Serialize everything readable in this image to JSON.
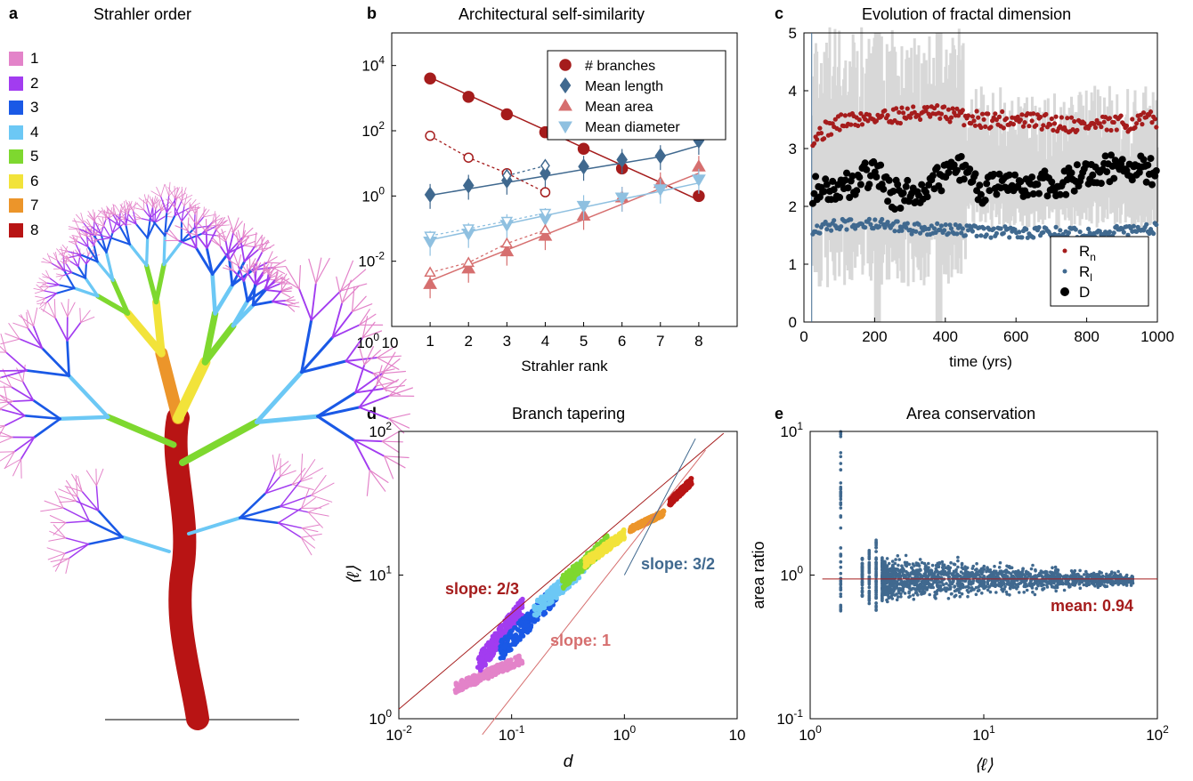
{
  "panels": {
    "a": {
      "label": "a",
      "title": "Strahler order"
    },
    "b": {
      "label": "b",
      "title": "Architectural self-similarity"
    },
    "c": {
      "label": "c",
      "title": "Evolution of fractal dimension"
    },
    "d": {
      "label": "d",
      "title": "Branch tapering"
    },
    "e": {
      "label": "e",
      "title": "Area conservation"
    }
  },
  "colors": {
    "order": [
      "#e383c9",
      "#a23cf0",
      "#1a59e6",
      "#6cc8f5",
      "#7ed82f",
      "#f2e33a",
      "#ec952a",
      "#b81414"
    ],
    "red": "#a51c1c",
    "steel": "#40698f",
    "salmon": "#d66f6f",
    "lightblue": "#8fc0e0",
    "grey": "#d8d8d8"
  },
  "chart_data": [
    {
      "panel": "a",
      "type": "other",
      "title": "Strahler order",
      "legend": [
        "1",
        "2",
        "3",
        "4",
        "5",
        "6",
        "7",
        "8"
      ]
    },
    {
      "panel": "b",
      "type": "scatter",
      "title": "Architectural self-similarity",
      "xlabel": "Strahler rank",
      "ylabel": "",
      "xlim": [
        0,
        9
      ],
      "ylim_log10": [
        -4,
        5
      ],
      "xticks": [
        "1",
        "2",
        "3",
        "4",
        "5",
        "6",
        "7",
        "8"
      ],
      "x_extra_tick": "10",
      "yticks": [
        "10",
        "10",
        "10"
      ],
      "ytick_exps": [
        "-2",
        "0",
        "2",
        "4"
      ],
      "y_origin_label": "10",
      "y_origin_exp": "0",
      "legend_position": "top-right",
      "categories": [
        1,
        2,
        3,
        4,
        5,
        6,
        7,
        8
      ],
      "series": [
        {
          "name": "# branches",
          "marker": "circle",
          "values": [
            4000,
            1100,
            320,
            90,
            28,
            7,
            null,
            1
          ],
          "fit": [
            4300,
            1250,
            360,
            105,
            30,
            8.8,
            2.6,
            0.75
          ]
        },
        {
          "name": "Mean length",
          "marker": "diamond",
          "values": [
            1.1,
            2.1,
            3.0,
            5.0,
            8.0,
            13,
            17,
            50
          ],
          "fit": [
            1.05,
            1.65,
            2.6,
            4.1,
            6.5,
            10.2,
            16,
            35
          ]
        },
        {
          "name": "Mean area",
          "marker": "triangle-up",
          "values": [
            0.002,
            0.006,
            0.02,
            0.06,
            0.25,
            0.9,
            2.5,
            8
          ],
          "fit": [
            0.0025,
            0.0075,
            0.022,
            0.065,
            0.19,
            0.56,
            1.7,
            5
          ]
        },
        {
          "name": "Mean diameter",
          "marker": "triangle-down",
          "values": [
            0.04,
            0.07,
            0.13,
            0.2,
            0.5,
            0.9,
            1.6,
            3.2
          ],
          "fit": [
            0.045,
            0.08,
            0.14,
            0.25,
            0.45,
            0.8,
            1.4,
            2.5
          ]
        }
      ],
      "open_series": [
        {
          "color": "red",
          "marker": "circle",
          "x": [
            1,
            2,
            3,
            4
          ],
          "values": [
            70,
            15,
            5,
            1.3
          ]
        },
        {
          "color": "steel",
          "marker": "diamond",
          "x": [
            3,
            4
          ],
          "values": [
            4.2,
            8.5
          ]
        },
        {
          "color": "salmon",
          "marker": "triangle-up",
          "x": [
            1,
            2,
            3,
            4
          ],
          "values": [
            0.0045,
            0.009,
            0.035,
            0.09
          ]
        },
        {
          "color": "lightblue",
          "marker": "triangle-down",
          "x": [
            1,
            2,
            3,
            4
          ],
          "values": [
            0.06,
            0.1,
            0.17,
            0.3
          ]
        }
      ]
    },
    {
      "panel": "c",
      "type": "scatter",
      "title": "Evolution of fractal dimension",
      "xlabel": "time (yrs)",
      "ylabel": "",
      "xlim": [
        0,
        1000
      ],
      "ylim": [
        0,
        5
      ],
      "xticks": [
        "0",
        "200",
        "400",
        "600",
        "800",
        "1000"
      ],
      "yticks": [
        "0",
        "1",
        "2",
        "3",
        "4",
        "5"
      ],
      "legend_position": "bottom-right",
      "series": [
        {
          "name": "R",
          "subscript": "n",
          "color": "red",
          "trend": [
            [
              25,
              3.2
            ],
            [
              100,
              3.45
            ],
            [
              200,
              3.55
            ],
            [
              300,
              3.6
            ],
            [
              400,
              3.6
            ],
            [
              500,
              3.5
            ],
            [
              600,
              3.5
            ],
            [
              700,
              3.45
            ],
            [
              800,
              3.4
            ],
            [
              900,
              3.42
            ],
            [
              1000,
              3.52
            ]
          ]
        },
        {
          "name": "R",
          "subscript": "l",
          "color": "steel",
          "trend": [
            [
              25,
              1.62
            ],
            [
              100,
              1.68
            ],
            [
              200,
              1.7
            ],
            [
              300,
              1.62
            ],
            [
              400,
              1.6
            ],
            [
              500,
              1.56
            ],
            [
              600,
              1.55
            ],
            [
              700,
              1.55
            ],
            [
              800,
              1.55
            ],
            [
              900,
              1.58
            ],
            [
              1000,
              1.62
            ]
          ]
        },
        {
          "name": "D",
          "color": "black",
          "trend": [
            [
              25,
              2.3
            ],
            [
              100,
              2.3
            ],
            [
              200,
              2.6
            ],
            [
              250,
              2.2
            ],
            [
              300,
              2.2
            ],
            [
              400,
              2.5
            ],
            [
              450,
              2.7
            ],
            [
              500,
              2.3
            ],
            [
              600,
              2.35
            ],
            [
              700,
              2.4
            ],
            [
              800,
              2.5
            ],
            [
              900,
              2.75
            ],
            [
              1000,
              2.55
            ]
          ]
        }
      ]
    },
    {
      "panel": "d",
      "type": "scatter",
      "title": "Branch tapering",
      "xlabel": "d",
      "ylabel": "⟨ℓ⟩",
      "xlim_log10": [
        -2,
        1
      ],
      "ylim_log10": [
        0,
        2
      ],
      "xticks": [
        "10",
        "10",
        "10",
        "10"
      ],
      "xtick_exps": [
        "-2",
        "-1",
        "0",
        ""
      ],
      "yticks": [
        "10",
        "10",
        "10"
      ],
      "ytick_exps": [
        "0",
        "1",
        "2"
      ],
      "annotations": [
        "slope: 2/3",
        "slope: 3/2",
        "slope: 1"
      ],
      "clusters_by_order": [
        {
          "order": 1,
          "logx": [
            -1.5,
            -0.9
          ],
          "logy": [
            0.18,
            0.45
          ]
        },
        {
          "order": 2,
          "logx": [
            -1.3,
            -0.9
          ],
          "logy": [
            0.3,
            0.85
          ]
        },
        {
          "order": 3,
          "logx": [
            -1.1,
            -0.6
          ],
          "logy": [
            0.4,
            0.95
          ]
        },
        {
          "order": 4,
          "logx": [
            -0.8,
            -0.35
          ],
          "logy": [
            0.7,
            1.12
          ]
        },
        {
          "order": 5,
          "logx": [
            -0.55,
            -0.15
          ],
          "logy": [
            0.9,
            1.28
          ]
        },
        {
          "order": 6,
          "logx": [
            -0.35,
            0.0
          ],
          "logy": [
            1.05,
            1.32
          ]
        },
        {
          "order": 7,
          "logx": [
            0.05,
            0.35
          ],
          "logy": [
            1.3,
            1.45
          ]
        },
        {
          "order": 8,
          "logx": [
            0.4,
            0.6
          ],
          "logy": [
            1.48,
            1.68
          ]
        }
      ]
    },
    {
      "panel": "e",
      "type": "scatter",
      "title": "Area conservation",
      "xlabel": "⟨ℓ⟩",
      "ylabel": "area ratio",
      "xlim_log10": [
        0,
        2
      ],
      "ylim_log10": [
        -1,
        1
      ],
      "xticks": [
        "10",
        "10",
        "10"
      ],
      "xtick_exps": [
        "0",
        "1",
        "2"
      ],
      "yticks": [
        "10",
        "10",
        "10"
      ],
      "ytick_exps": [
        "-1",
        "0",
        "1"
      ],
      "mean": 0.94,
      "mean_label": "mean: 0.94"
    }
  ]
}
